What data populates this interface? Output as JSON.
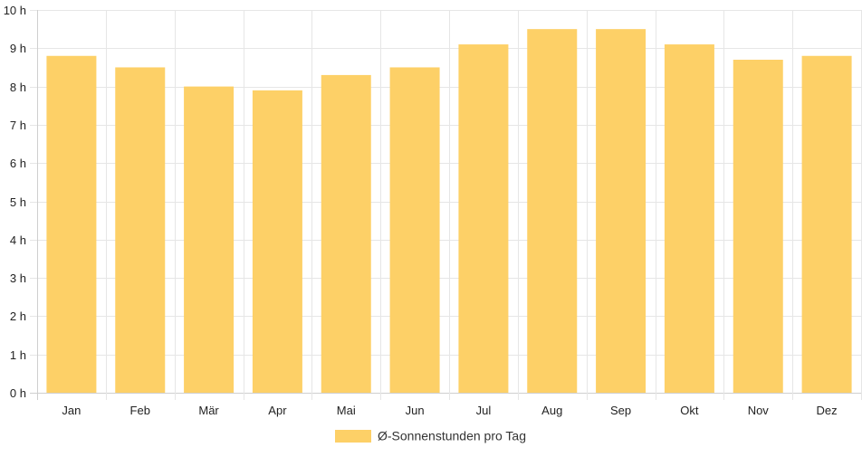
{
  "chart_data": {
    "type": "bar",
    "title": "",
    "xlabel": "",
    "ylabel": "",
    "categories": [
      "Jan",
      "Feb",
      "Mär",
      "Apr",
      "Mai",
      "Jun",
      "Jul",
      "Aug",
      "Sep",
      "Okt",
      "Nov",
      "Dez"
    ],
    "series": [
      {
        "name": "Ø-Sonnenstunden pro Tag",
        "color": "#fdd067",
        "values": [
          8.8,
          8.5,
          8.0,
          7.9,
          8.3,
          8.5,
          9.1,
          9.5,
          9.5,
          9.1,
          8.7,
          8.8
        ]
      }
    ],
    "ylim": [
      0,
      10
    ],
    "y_ticks": [
      0,
      1,
      2,
      3,
      4,
      5,
      6,
      7,
      8,
      9,
      10
    ],
    "y_tick_suffix": " h",
    "grid": true,
    "legend_position": "bottom"
  }
}
